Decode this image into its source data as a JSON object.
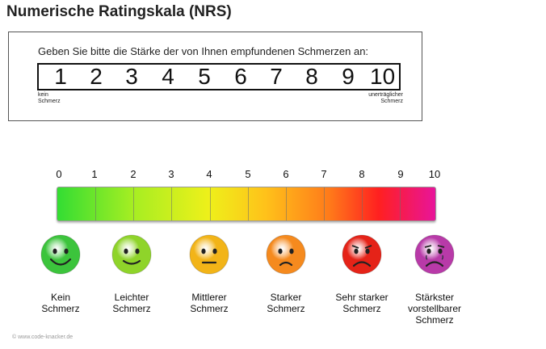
{
  "title": "Numerische Ratingskala (NRS)",
  "nrs_card": {
    "instruction": "Geben Sie bitte die Stärke der von Ihnen empfundenen Schmerzen an:",
    "numbers": [
      "1",
      "2",
      "3",
      "4",
      "5",
      "6",
      "7",
      "8",
      "9",
      "10"
    ],
    "low_label": "kein\nSchmerz",
    "high_label": "unerträglicher\nSchmerz"
  },
  "scale": {
    "ticks": [
      "0",
      "1",
      "2",
      "3",
      "4",
      "5",
      "6",
      "7",
      "8",
      "9",
      "10"
    ]
  },
  "faces": [
    {
      "label": "Kein\nSchmerz",
      "color": "#3cc43c",
      "mood": "happy"
    },
    {
      "label": "Leichter\nSchmerz",
      "color": "#8fd42a",
      "mood": "smile"
    },
    {
      "label": "Mittlerer\nSchmerz",
      "color": "#f2b418",
      "mood": "neutral"
    },
    {
      "label": "Starker\nSchmerz",
      "color": "#f58a1e",
      "mood": "sad"
    },
    {
      "label": "Sehr starker\nSchmerz",
      "color": "#e52318",
      "mood": "verysad"
    },
    {
      "label": "Stärkster\nvorstellbarer\nSchmerz",
      "color": "#b83aa8",
      "mood": "crying"
    }
  ],
  "copyright": "© www.code-knacker.de"
}
